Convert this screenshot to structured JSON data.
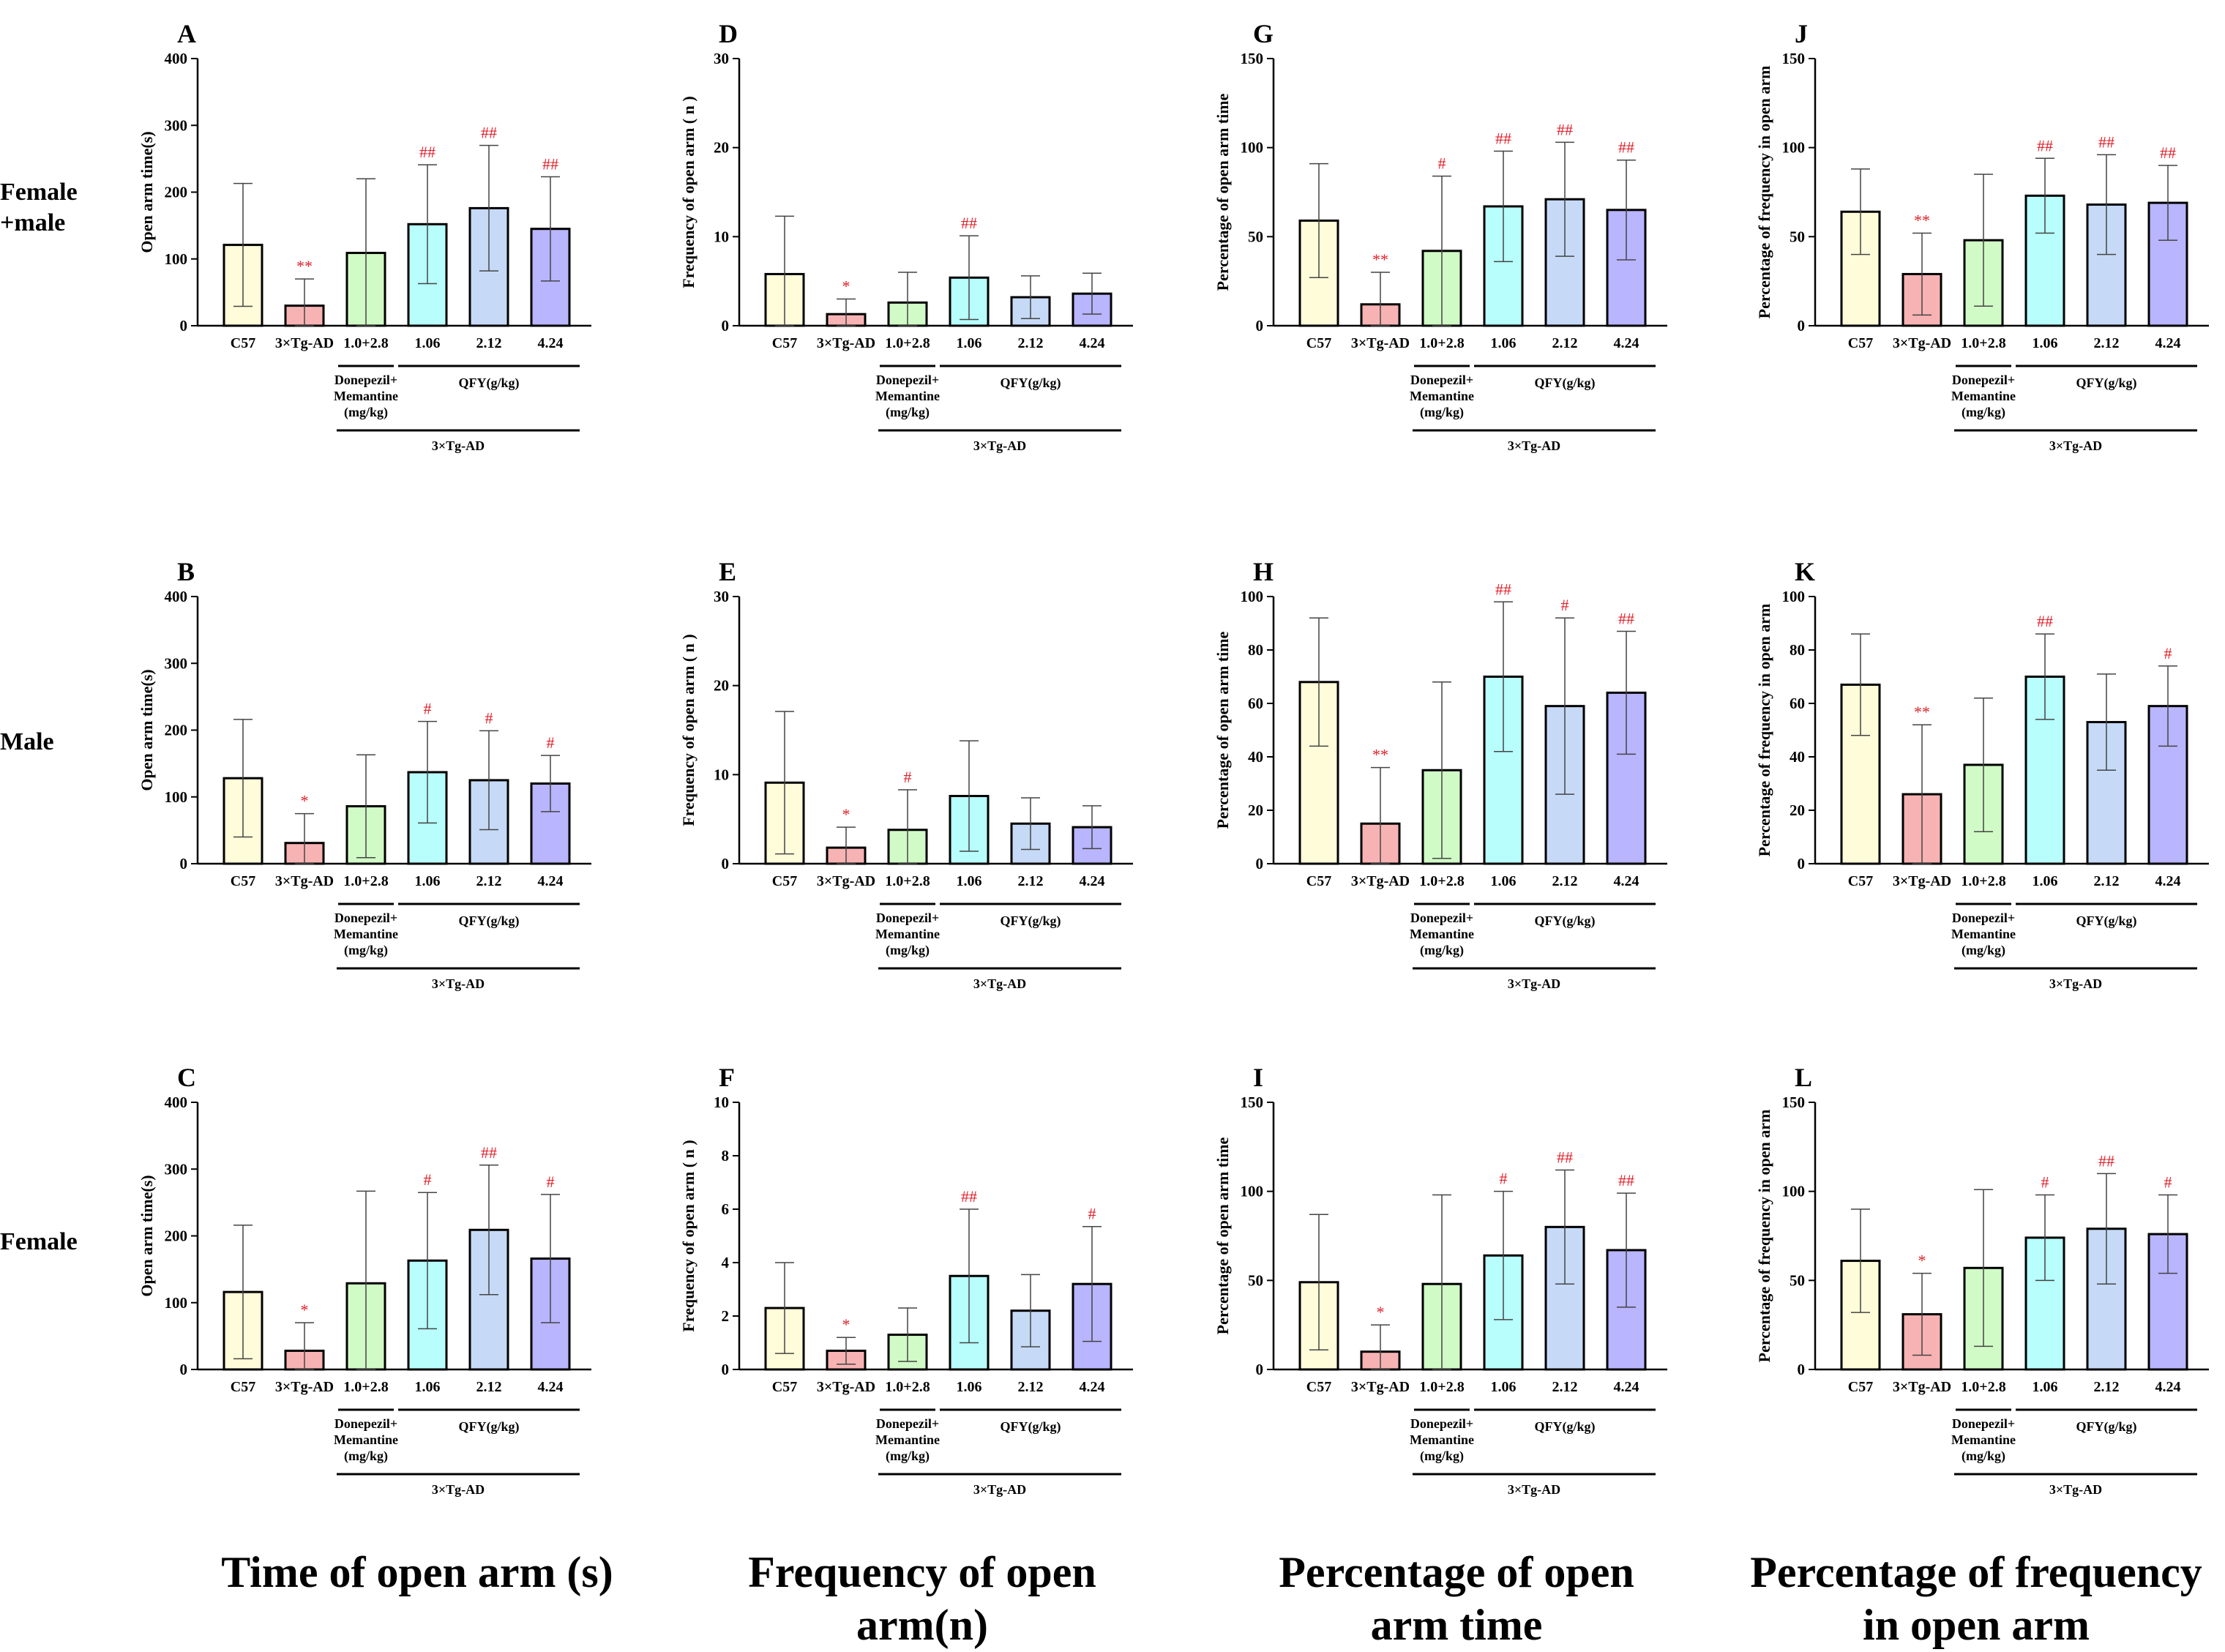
{
  "row_labels": [
    "Female\n+male",
    "Male",
    "Female"
  ],
  "column_titles": [
    "Time of open arm (s)",
    "Frequency of open arm(n)",
    "Percentage of open arm time",
    "Percentage of frequency in open arm"
  ],
  "group_labels": {
    "categories": [
      "C57",
      "3×Tg-AD",
      "1.0+2.8",
      "1.06",
      "2.12",
      "4.24"
    ],
    "donepezil": "Donepezil+\nMemantine\n(mg/kg)",
    "qfy": "QFY(g/kg)",
    "model": "3×Tg-AD"
  },
  "colors": {
    "bars": [
      "#FFFCDA",
      "#F7B3B3",
      "#D1FBC6",
      "#B7FEFC",
      "#C6DAF7",
      "#B9B5FE"
    ],
    "significance": "#E0202A"
  },
  "chart_data": [
    {
      "panel": "A",
      "type": "bar",
      "ylabel": "Open arm time(s)",
      "ylim": [
        0,
        400
      ],
      "ticks": [
        0,
        100,
        200,
        300,
        400
      ],
      "values": [
        121,
        30,
        109,
        152,
        176,
        145
      ],
      "errors": [
        92,
        40,
        111,
        89,
        94,
        78
      ],
      "sig": [
        "",
        "**",
        "",
        "##",
        "##",
        "##"
      ]
    },
    {
      "panel": "B",
      "type": "bar",
      "ylabel": "Open arm time(s)",
      "ylim": [
        0,
        400
      ],
      "ticks": [
        0,
        100,
        200,
        300,
        400
      ],
      "values": [
        128,
        31,
        86,
        137,
        125,
        120
      ],
      "errors": [
        88,
        44,
        77,
        76,
        74,
        42
      ],
      "sig": [
        "",
        "*",
        "",
        "#",
        "#",
        "#"
      ]
    },
    {
      "panel": "C",
      "type": "bar",
      "ylabel": "Open arm time(s)",
      "ylim": [
        0,
        400
      ],
      "ticks": [
        0,
        100,
        200,
        300,
        400
      ],
      "values": [
        116,
        28,
        129,
        163,
        209,
        166
      ],
      "errors": [
        100,
        42,
        138,
        102,
        97,
        96
      ],
      "sig": [
        "",
        "*",
        "",
        "#",
        "##",
        "#"
      ]
    },
    {
      "panel": "D",
      "type": "bar",
      "ylabel": "Frequency of open arm ( n )",
      "ylim": [
        0,
        30
      ],
      "ticks": [
        0,
        10,
        20,
        30
      ],
      "values": [
        5.8,
        1.3,
        2.6,
        5.4,
        3.2,
        3.6
      ],
      "errors": [
        6.5,
        1.7,
        3.4,
        4.7,
        2.4,
        2.3
      ],
      "sig": [
        "",
        "*",
        "",
        "##",
        "",
        ""
      ]
    },
    {
      "panel": "E",
      "type": "bar",
      "ylabel": "Frequency of open arm ( n )",
      "ylim": [
        0,
        30
      ],
      "ticks": [
        0,
        10,
        20,
        30
      ],
      "values": [
        9.1,
        1.8,
        3.8,
        7.6,
        4.5,
        4.1
      ],
      "errors": [
        8.0,
        2.3,
        4.5,
        6.2,
        2.9,
        2.4
      ],
      "sig": [
        "",
        "*",
        "#",
        "",
        "",
        ""
      ]
    },
    {
      "panel": "F",
      "type": "bar",
      "ylabel": "Frequency of open arm ( n )",
      "ylim": [
        0,
        10
      ],
      "ticks": [
        0,
        2,
        4,
        6,
        8,
        10
      ],
      "values": [
        2.3,
        0.7,
        1.3,
        3.5,
        2.2,
        3.2
      ],
      "errors": [
        1.7,
        0.5,
        1.0,
        2.5,
        1.35,
        2.15
      ],
      "sig": [
        "",
        "*",
        "",
        "##",
        "",
        "#"
      ]
    },
    {
      "panel": "G",
      "type": "bar",
      "ylabel": "Percentage of open arm time",
      "ylim": [
        0,
        150
      ],
      "ticks": [
        0,
        50,
        100,
        150
      ],
      "values": [
        59,
        12,
        42,
        67,
        71,
        65
      ],
      "errors": [
        32,
        18,
        42,
        31,
        32,
        28
      ],
      "sig": [
        "",
        "**",
        "#",
        "##",
        "##",
        "##"
      ]
    },
    {
      "panel": "H",
      "type": "bar",
      "ylabel": "Percentage of open arm time",
      "ylim": [
        0,
        100
      ],
      "ticks": [
        0,
        20,
        40,
        60,
        80,
        100
      ],
      "values": [
        68,
        15,
        35,
        70,
        59,
        64
      ],
      "errors": [
        24,
        21,
        33,
        28,
        33,
        23
      ],
      "sig": [
        "",
        "**",
        "",
        "##",
        "#",
        "##"
      ]
    },
    {
      "panel": "I",
      "type": "bar",
      "ylabel": "Percentage of open arm time",
      "ylim": [
        0,
        150
      ],
      "ticks": [
        0,
        50,
        100,
        150
      ],
      "values": [
        49,
        10,
        48,
        64,
        80,
        67
      ],
      "errors": [
        38,
        15,
        50,
        36,
        32,
        32
      ],
      "sig": [
        "",
        "*",
        "",
        "#",
        "##",
        "##"
      ]
    },
    {
      "panel": "J",
      "type": "bar",
      "ylabel": "Percentage of frequency in open arm",
      "ylim": [
        0,
        150
      ],
      "ticks": [
        0,
        50,
        100,
        150
      ],
      "values": [
        64,
        29,
        48,
        73,
        68,
        69
      ],
      "errors": [
        24,
        23,
        37,
        21,
        28,
        21
      ],
      "sig": [
        "",
        "**",
        "",
        "##",
        "##",
        "##"
      ]
    },
    {
      "panel": "K",
      "type": "bar",
      "ylabel": "Percentage of frequency in open arm",
      "ylim": [
        0,
        100
      ],
      "ticks": [
        0,
        20,
        40,
        60,
        80,
        100
      ],
      "values": [
        67,
        26,
        37,
        70,
        53,
        59
      ],
      "errors": [
        19,
        26,
        25,
        16,
        18,
        15
      ],
      "sig": [
        "",
        "**",
        "",
        "##",
        "",
        "#"
      ]
    },
    {
      "panel": "L",
      "type": "bar",
      "ylabel": "Percentage of frequency in open arm",
      "ylim": [
        0,
        150
      ],
      "ticks": [
        0,
        50,
        100,
        150
      ],
      "values": [
        61,
        31,
        57,
        74,
        79,
        76
      ],
      "errors": [
        29,
        23,
        44,
        24,
        31,
        22
      ],
      "sig": [
        "",
        "*",
        "",
        "#",
        "##",
        "#"
      ]
    }
  ]
}
